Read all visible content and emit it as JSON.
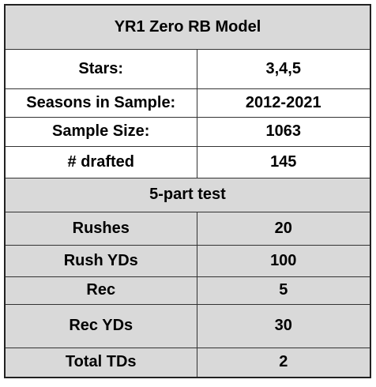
{
  "table": {
    "title": "YR1 Zero RB Model",
    "rows": [
      [
        "Stars:",
        "3,4,5"
      ],
      [
        "Seasons in Sample:",
        "2012-2021"
      ],
      [
        "Sample Size:",
        "1063"
      ],
      [
        "# drafted",
        "145"
      ]
    ],
    "section": "5-part test",
    "test_rows": [
      [
        "Rushes",
        "20"
      ],
      [
        "Rush YDs",
        "100"
      ],
      [
        "Rec",
        "5"
      ],
      [
        "Rec YDs",
        "30"
      ],
      [
        "Total TDs",
        "2"
      ]
    ]
  }
}
